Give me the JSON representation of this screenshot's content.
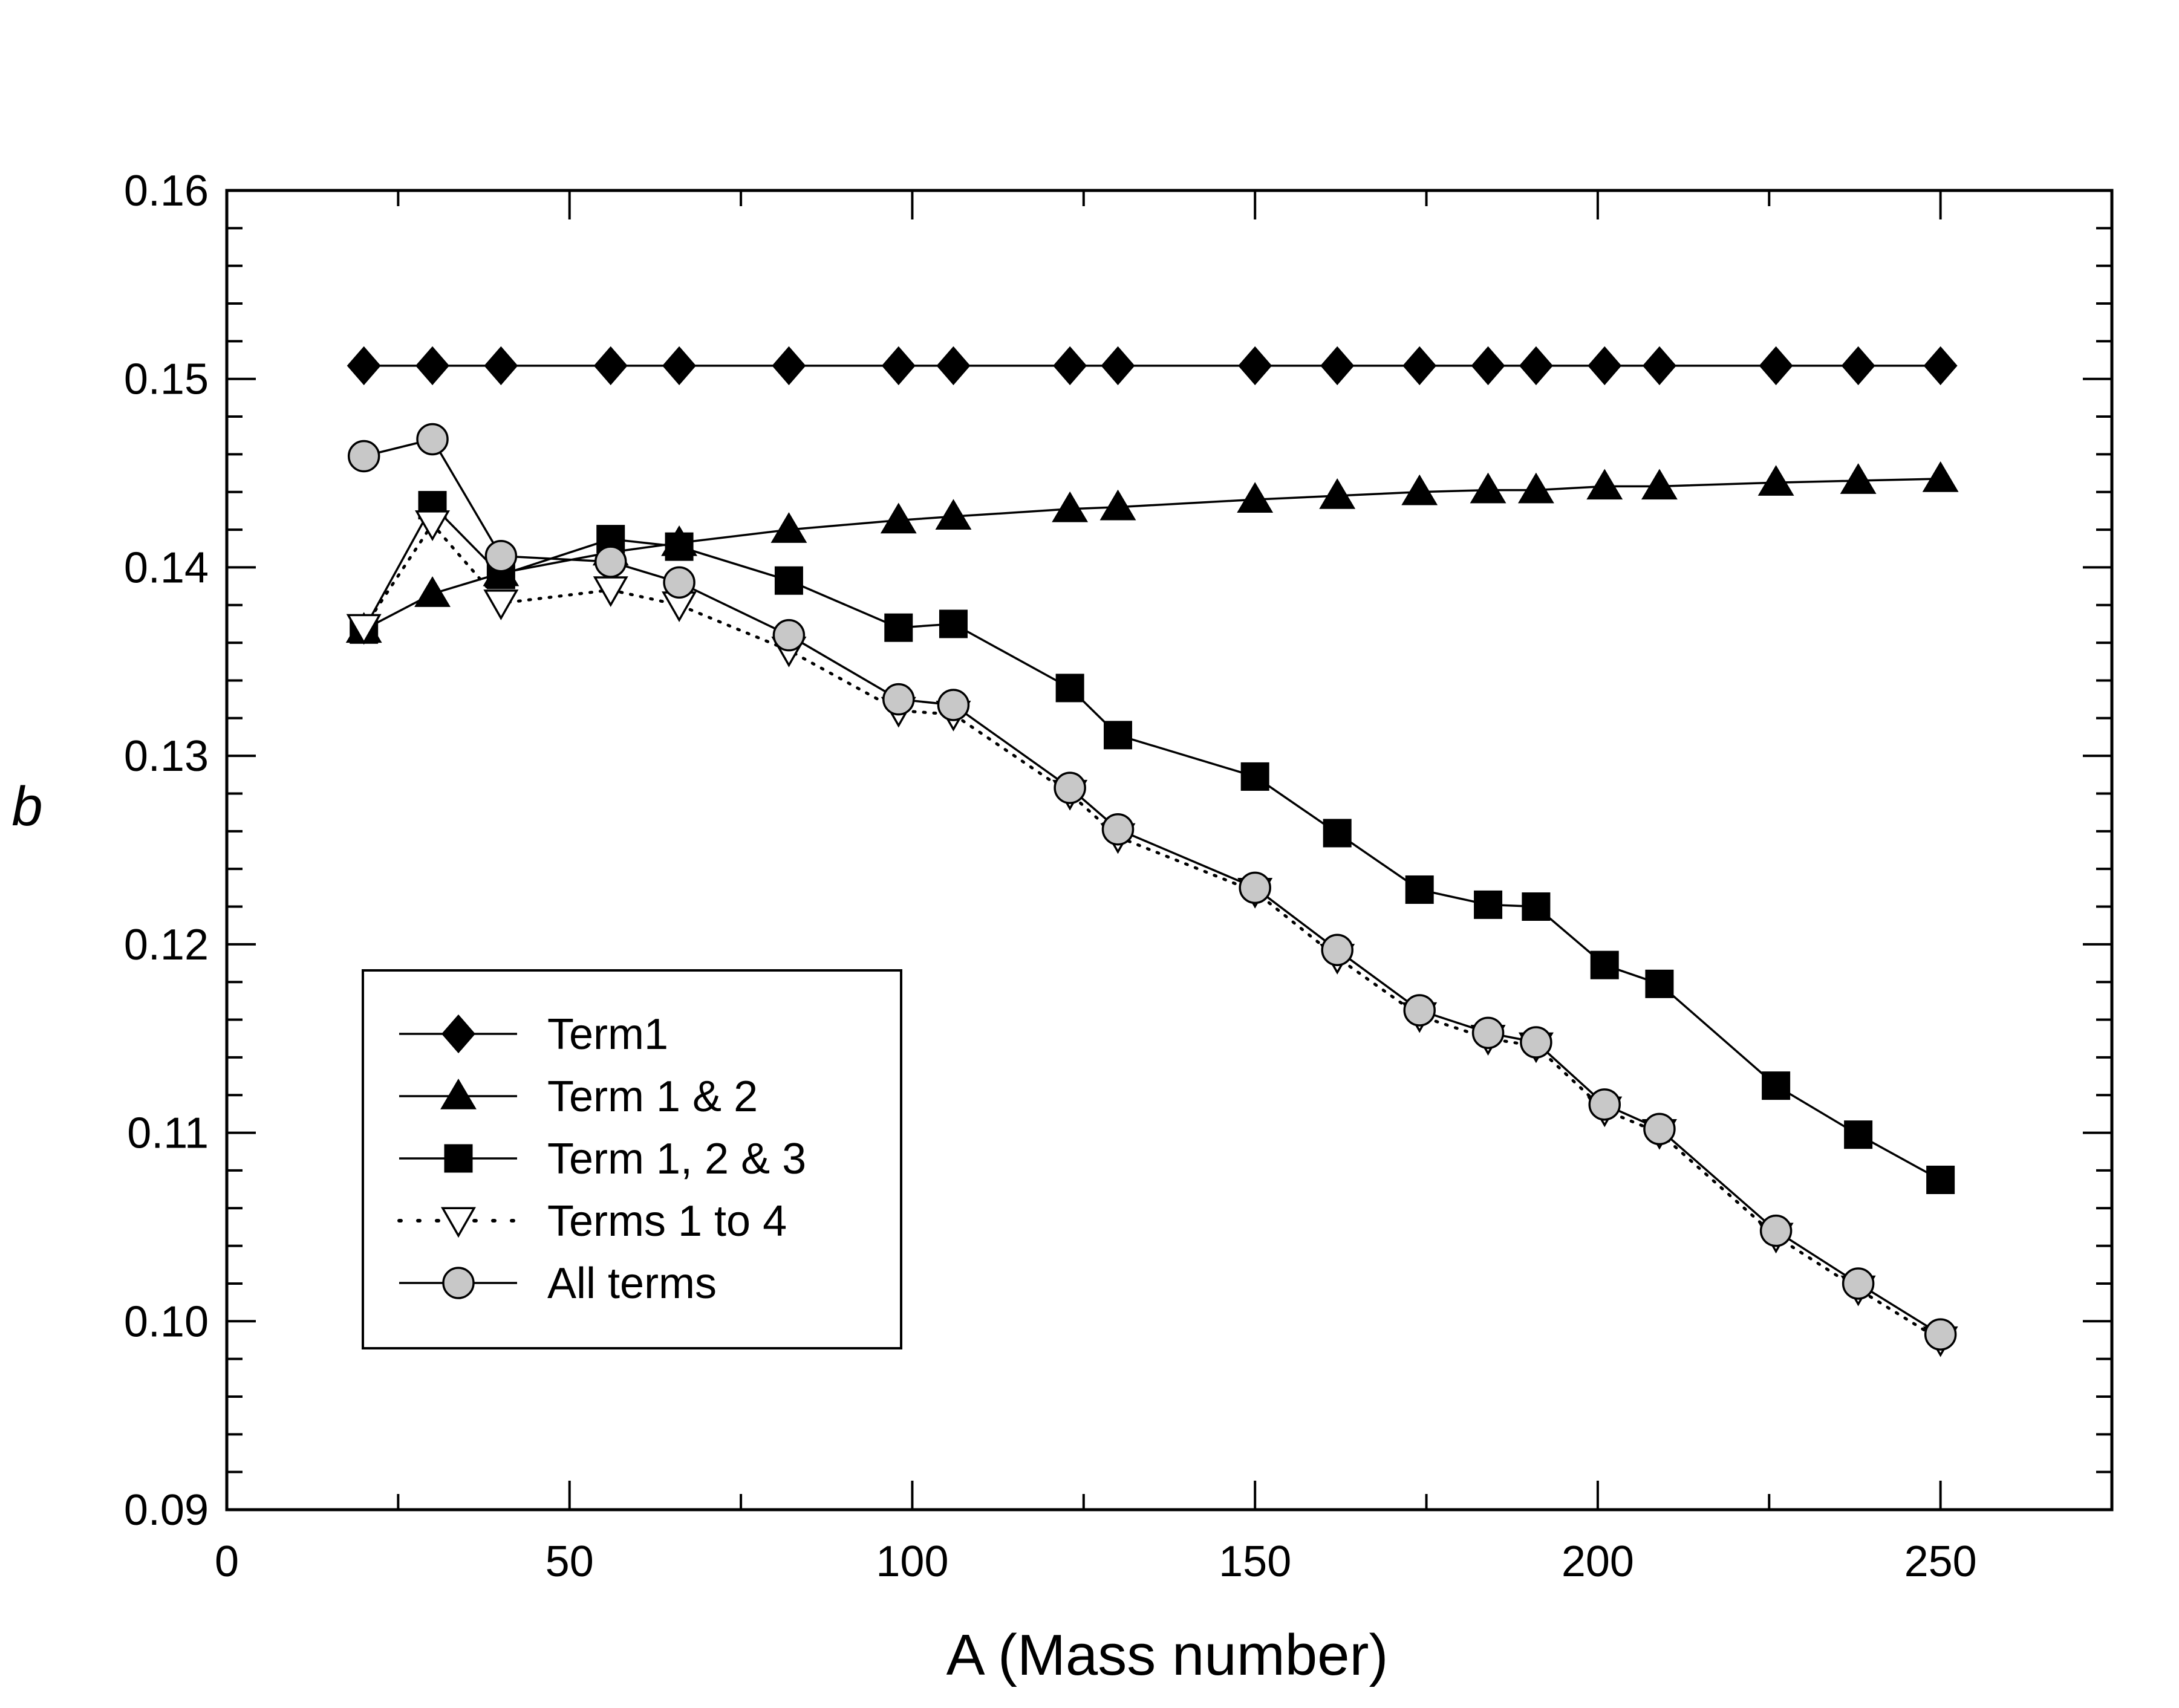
{
  "chart_data": {
    "type": "line",
    "title": "",
    "xlabel": "A (Mass number)",
    "ylabel": "b",
    "xlim": [
      0,
      275
    ],
    "ylim": [
      0.09,
      0.16
    ],
    "x_ticks": [
      0,
      50,
      100,
      150,
      200,
      250
    ],
    "x_tick_labels": [
      "0",
      "50",
      "100",
      "150",
      "200",
      "250"
    ],
    "y_ticks": [
      0.09,
      0.1,
      0.11,
      0.12,
      0.13,
      0.14,
      0.15,
      0.16
    ],
    "y_tick_labels": [
      "0.09",
      "0.10",
      "0.11",
      "0.12",
      "0.13",
      "0.14",
      "0.15",
      "0.16"
    ],
    "grid": false,
    "legend_position": "lower-left",
    "x": [
      20,
      30,
      40,
      56,
      66,
      82,
      98,
      106,
      123,
      130,
      150,
      162,
      174,
      184,
      191,
      201,
      209,
      226,
      238,
      250
    ],
    "series": [
      {
        "name": "Term1",
        "marker": "diamond",
        "line": "solid",
        "values": [
          0.1507,
          0.1507,
          0.1507,
          0.1507,
          0.1507,
          0.1507,
          0.1507,
          0.1507,
          0.1507,
          0.1507,
          0.1507,
          0.1507,
          0.1507,
          0.1507,
          0.1507,
          0.1507,
          0.1507,
          0.1507,
          0.1507,
          0.1507
        ]
      },
      {
        "name": "Term 1 & 2",
        "marker": "triangle-up",
        "line": "solid",
        "values": [
          0.1367,
          0.1386,
          0.1397,
          0.1408,
          0.1413,
          0.142,
          0.1425,
          0.1427,
          0.1431,
          0.1432,
          0.1436,
          0.1438,
          0.144,
          0.1441,
          0.1441,
          0.1443,
          0.1443,
          0.1445,
          0.1446,
          0.1447
        ]
      },
      {
        "name": "Term 1, 2 & 3",
        "marker": "square",
        "line": "solid",
        "values": [
          0.1367,
          0.1433,
          0.1396,
          0.1415,
          0.1411,
          0.1393,
          0.1368,
          0.137,
          0.1336,
          0.1311,
          0.1289,
          0.1259,
          0.1229,
          0.1221,
          0.122,
          0.1189,
          0.1179,
          0.1125,
          0.1099,
          0.1075
        ]
      },
      {
        "name": "Terms 1 to 4",
        "marker": "triangle-down-open",
        "line": "dotted",
        "values": [
          0.1368,
          0.1423,
          0.1381,
          0.1388,
          0.138,
          0.1356,
          0.1324,
          0.1322,
          0.128,
          0.1257,
          0.1228,
          0.1193,
          0.1162,
          0.115,
          0.1146,
          0.1112,
          0.11,
          0.1045,
          0.1017,
          0.099
        ]
      },
      {
        "name": "All terms",
        "marker": "circle-gray",
        "line": "solid",
        "values": [
          0.1459,
          0.1468,
          0.1406,
          0.1403,
          0.1392,
          0.1364,
          0.133,
          0.1327,
          0.1283,
          0.1261,
          0.123,
          0.1197,
          0.1165,
          0.1153,
          0.1148,
          0.1115,
          0.1102,
          0.1048,
          0.102,
          0.0993
        ]
      }
    ]
  },
  "colors": {
    "line": "#000000",
    "filled_marker": "#000000",
    "gray_marker": "#c8c8c8",
    "open_marker": "#ffffff",
    "background": "#ffffff"
  }
}
